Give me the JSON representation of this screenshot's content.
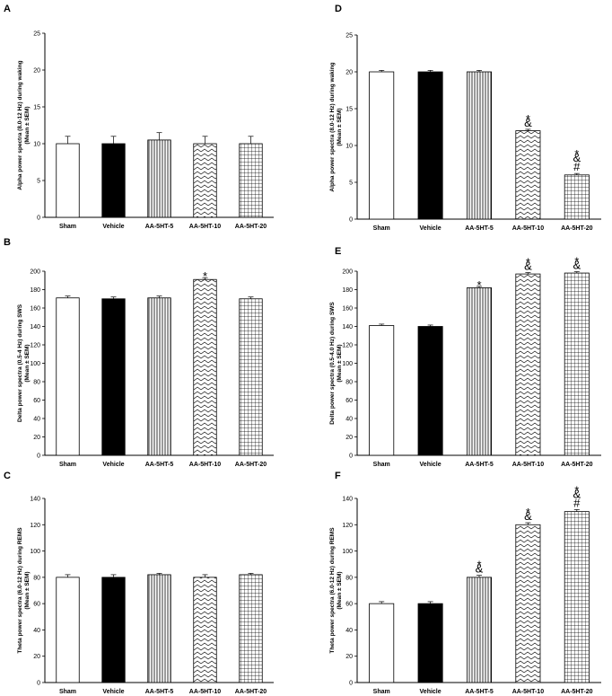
{
  "chart_data": [
    {
      "panel": "A",
      "type": "bar",
      "ylabel": [
        "Alpha power spectra (8.0-12 Hz) during waking",
        "(Mean ± SEM)"
      ],
      "ylim": [
        0,
        25
      ],
      "yticks": [
        0,
        5,
        10,
        15,
        20,
        25
      ],
      "categories": [
        "Sham",
        "Vehicle",
        "AA-5HT-5",
        "AA-5HT-10",
        "AA-5HT-20"
      ],
      "values": [
        10,
        10,
        10.5,
        10,
        10
      ],
      "errors": [
        1.0,
        1.0,
        1.0,
        1.0,
        1.0
      ],
      "patterns": [
        "white",
        "black",
        "vertical",
        "zigzag",
        "grid"
      ],
      "annotations": [
        [],
        [],
        [],
        [],
        []
      ]
    },
    {
      "panel": "B",
      "type": "bar",
      "ylabel": [
        "Delta power spectra (0.5-4 Hz) during SWS",
        "(Mean ± SEM)"
      ],
      "ylim": [
        0,
        200
      ],
      "yticks": [
        0,
        20,
        40,
        60,
        80,
        100,
        120,
        140,
        160,
        180,
        200
      ],
      "categories": [
        "Sham",
        "Vehicle",
        "AA-5HT-5",
        "AA-5HT-10",
        "AA-5HT-20"
      ],
      "values": [
        171,
        170,
        171,
        191,
        170
      ],
      "errors": [
        2,
        2,
        2,
        2,
        2
      ],
      "patterns": [
        "white",
        "black",
        "vertical",
        "zigzag",
        "grid"
      ],
      "annotations": [
        [],
        [],
        [],
        [
          "*"
        ],
        []
      ]
    },
    {
      "panel": "C",
      "type": "bar",
      "ylabel": [
        "Theta power spectra (6.0-12 Hz) during REMS",
        "(Mean ± SEM)"
      ],
      "ylim": [
        0,
        140
      ],
      "yticks": [
        0,
        20,
        40,
        60,
        80,
        100,
        120,
        140
      ],
      "categories": [
        "Sham",
        "Vehicle",
        "AA-5HT-5",
        "AA-5HT-10",
        "AA-5HT-20"
      ],
      "values": [
        80,
        80,
        82,
        80,
        82
      ],
      "errors": [
        2,
        2,
        1,
        2,
        1
      ],
      "patterns": [
        "white",
        "black",
        "vertical",
        "zigzag",
        "grid"
      ],
      "annotations": [
        [],
        [],
        [],
        [],
        []
      ]
    },
    {
      "panel": "D",
      "type": "bar",
      "ylabel": [
        "Alpha power spectra (8.0-12 Hz) during waking",
        "(Mean ± SEM)"
      ],
      "ylim": [
        0,
        25
      ],
      "yticks": [
        0,
        5,
        10,
        15,
        20,
        25
      ],
      "categories": [
        "Sham",
        "Vehicle",
        "AA-5HT-5",
        "AA-5HT-10",
        "AA-5HT-20"
      ],
      "values": [
        20,
        20,
        20,
        12,
        6
      ],
      "errors": [
        0.2,
        0.2,
        0.2,
        0.2,
        0.2
      ],
      "patterns": [
        "white",
        "black",
        "vertical",
        "zigzag",
        "grid"
      ],
      "annotations": [
        [],
        [],
        [],
        [
          "*",
          "&"
        ],
        [
          "*",
          "&",
          "#"
        ]
      ]
    },
    {
      "panel": "E",
      "type": "bar",
      "ylabel": [
        "Delta power spectra (0.5-4.0 Hz) during SWS",
        "(Mean ± SEM)"
      ],
      "ylim": [
        0,
        200
      ],
      "yticks": [
        0,
        20,
        40,
        60,
        80,
        100,
        120,
        140,
        160,
        180,
        200
      ],
      "categories": [
        "Sham",
        "Vehicle",
        "AA-5HT-5",
        "AA-5HT-10",
        "AA-5HT-20"
      ],
      "values": [
        141,
        140,
        182,
        197,
        198
      ],
      "errors": [
        1.5,
        1.5,
        1.5,
        1.5,
        1.5
      ],
      "patterns": [
        "white",
        "black",
        "vertical",
        "zigzag",
        "grid"
      ],
      "annotations": [
        [],
        [],
        [
          "*"
        ],
        [
          "*",
          "&"
        ],
        [
          "*",
          "&"
        ]
      ]
    },
    {
      "panel": "F",
      "type": "bar",
      "ylabel": [
        "Theta power spectra (6.0-12 Hz) during REMS",
        "(Mean ± SEM)"
      ],
      "ylim": [
        0,
        140
      ],
      "yticks": [
        0,
        20,
        40,
        60,
        80,
        100,
        120,
        140
      ],
      "categories": [
        "Sham",
        "Vehicle",
        "AA-5HT-5",
        "AA-5HT-10",
        "AA-5HT-20"
      ],
      "values": [
        60,
        60,
        80,
        120,
        130
      ],
      "errors": [
        1.5,
        1.5,
        1.5,
        1.5,
        1.5
      ],
      "patterns": [
        "white",
        "black",
        "vertical",
        "zigzag",
        "grid"
      ],
      "annotations": [
        [],
        [],
        [
          "*",
          "&"
        ],
        [
          "*",
          "&"
        ],
        [
          "*",
          "&",
          "#"
        ]
      ]
    }
  ]
}
